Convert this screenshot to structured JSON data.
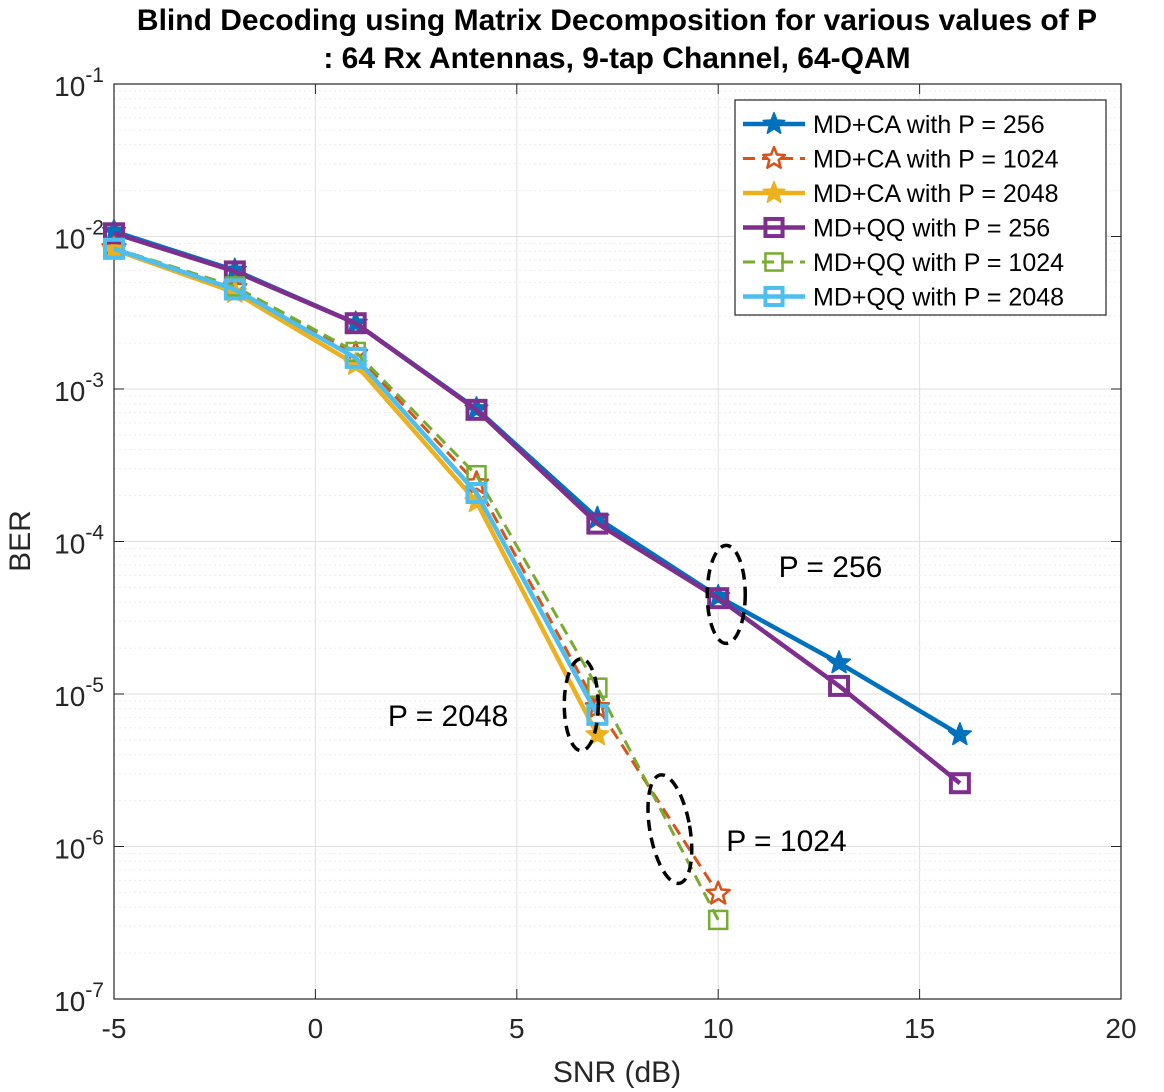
{
  "chart_data": {
    "type": "line",
    "title_line1": "Blind Decoding using Matrix Decomposition for various values of P",
    "title_line2": ": 64 Rx Antennas, 9-tap Channel, 64-QAM",
    "xlabel": "SNR (dB)",
    "ylabel": "BER",
    "xscale": "linear",
    "yscale": "log",
    "xlim": [
      -5,
      20
    ],
    "ylim": [
      1e-07,
      0.1
    ],
    "xticks": [
      -5,
      0,
      5,
      10,
      15,
      20
    ],
    "xtick_labels": [
      "-5",
      "0",
      "5",
      "10",
      "15",
      "20"
    ],
    "yticks": [
      1e-07,
      1e-06,
      1e-05,
      0.0001,
      0.001,
      0.01,
      0.1
    ],
    "ytick_exponents": [
      "-7",
      "-6",
      "-5",
      "-4",
      "-3",
      "-2",
      "-1"
    ],
    "ytick_base": "10",
    "grid": true,
    "minor_grid": true,
    "legend_position": "top-right",
    "series": [
      {
        "name": "MD+CA with P = 256",
        "color": "#0072BD",
        "dash": "solid",
        "marker": "star",
        "filled": true,
        "x": [
          -5,
          -2,
          1,
          4,
          7,
          10,
          13,
          16
        ],
        "y": [
          0.0108,
          0.006,
          0.0027,
          0.00074,
          0.000142,
          4.35e-05,
          1.6e-05,
          5.4e-06
        ]
      },
      {
        "name": "MD+CA with P = 1024",
        "color": "#D95319",
        "dash": "dashed",
        "marker": "star",
        "filled": false,
        "x": [
          -5,
          -2,
          1,
          4,
          7,
          10
        ],
        "y": [
          0.0084,
          0.0046,
          0.0017,
          0.00024,
          8.2e-06,
          4.9e-07
        ]
      },
      {
        "name": "MD+CA with P = 2048",
        "color": "#EDB120",
        "dash": "solid",
        "marker": "star",
        "filled": true,
        "x": [
          -5,
          -2,
          1,
          4,
          7
        ],
        "y": [
          0.0082,
          0.0043,
          0.00145,
          0.000182,
          5.4e-06
        ]
      },
      {
        "name": "MD+QQ with P = 256",
        "color": "#7E2F8E",
        "dash": "solid",
        "marker": "square",
        "filled": false,
        "x": [
          -5,
          -2,
          1,
          4,
          7,
          10,
          13,
          16
        ],
        "y": [
          0.0105,
          0.0059,
          0.0027,
          0.00073,
          0.000131,
          4.25e-05,
          1.13e-05,
          2.6e-06
        ]
      },
      {
        "name": "MD+QQ with P = 1024",
        "color": "#77AC30",
        "dash": "dashed",
        "marker": "square",
        "filled": false,
        "x": [
          -5,
          -2,
          1,
          4,
          7,
          10
        ],
        "y": [
          0.0084,
          0.0047,
          0.00175,
          0.000272,
          1.1e-05,
          3.3e-07
        ]
      },
      {
        "name": "MD+QQ with P = 2048",
        "color": "#4DBEEE",
        "dash": "solid",
        "marker": "square",
        "filled": false,
        "x": [
          -5,
          -2,
          1,
          4,
          7
        ],
        "y": [
          0.0083,
          0.0045,
          0.0016,
          0.000208,
          7.3e-06
        ]
      }
    ],
    "annotations": [
      {
        "text": "P = 256",
        "x": 11.5,
        "y": 6.8e-05,
        "ellipse_center": [
          10.2,
          4.5e-05
        ]
      },
      {
        "text": "P = 2048",
        "x": 1.8,
        "y": 7.2e-06,
        "ellipse_center": [
          6.6,
          8.5e-06
        ]
      },
      {
        "text": "P = 1024",
        "x": 10.2,
        "y": 1.09e-06,
        "ellipse_center": [
          8.8,
          1.3e-06
        ]
      }
    ]
  }
}
